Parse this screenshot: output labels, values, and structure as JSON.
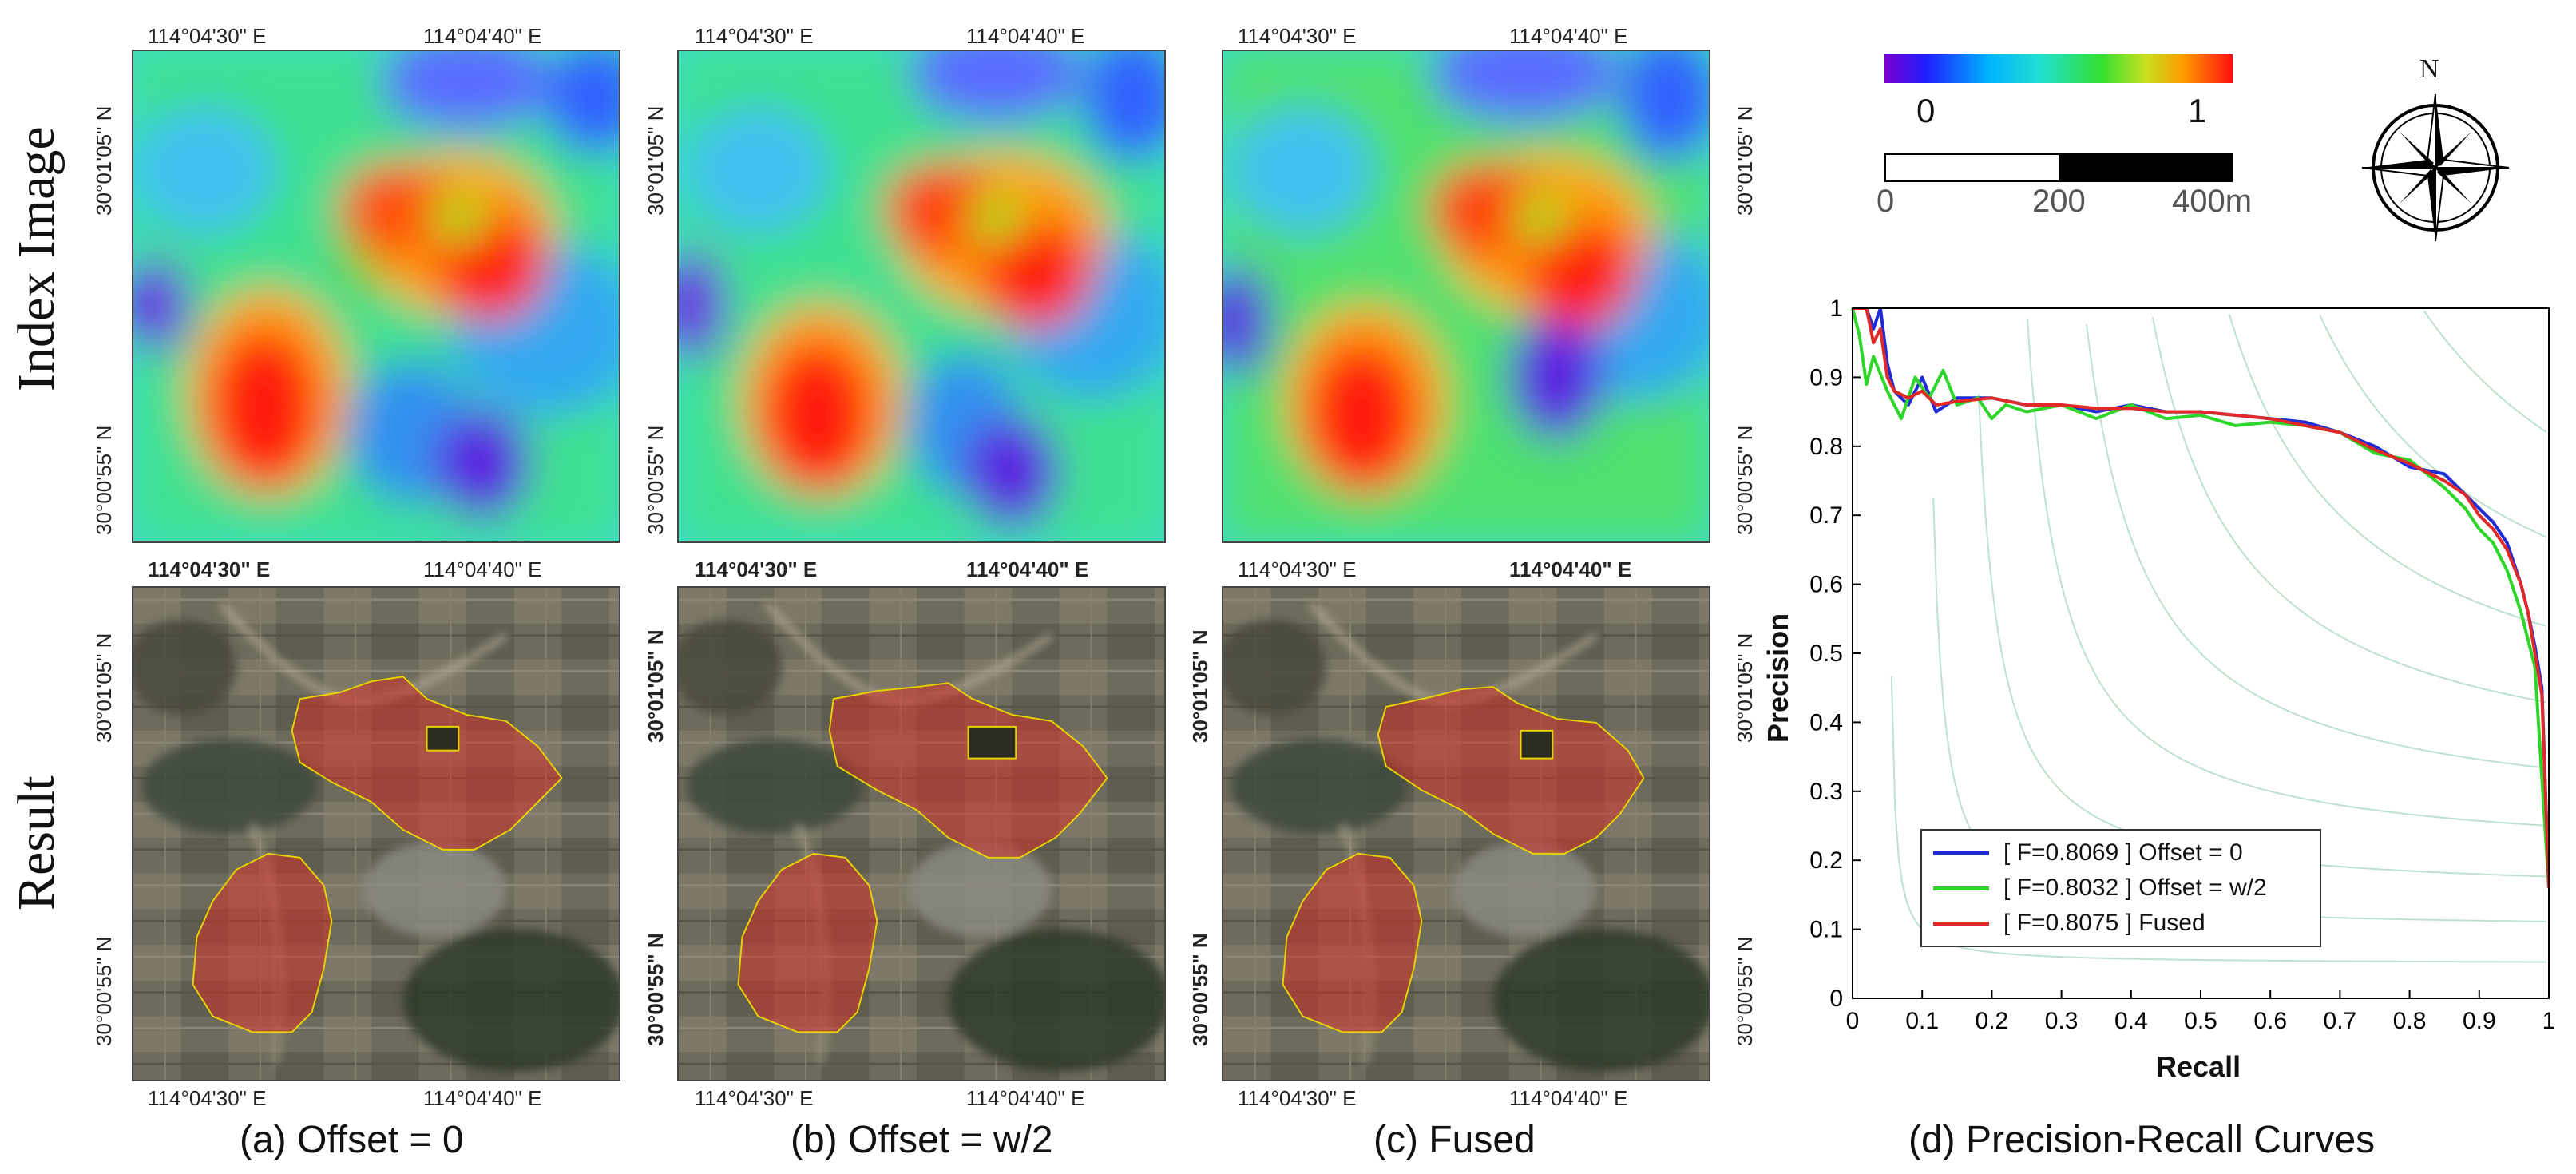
{
  "row_labels": {
    "index": "Index Image",
    "result": "Result"
  },
  "coords": {
    "lon1": "114°04'30\" E",
    "lon2": "114°04'40\" E",
    "lat1": "30°01'05\" N",
    "lat2": "30°00'55\" N"
  },
  "captions": {
    "a": "(a) Offset = 0",
    "b": "(b) Offset = w/2",
    "c": "(c) Fused",
    "d": "(d) Precision-Recall Curves"
  },
  "colorbar": {
    "min_label": "0",
    "max_label": "1"
  },
  "scalebar": {
    "l0": "0",
    "l1": "200",
    "l2": "400m"
  },
  "compass": {
    "north_label": "N"
  },
  "chart_data": {
    "type": "line",
    "xlabel": "Recall",
    "ylabel": "Precision",
    "xlim": [
      0,
      1
    ],
    "ylim": [
      0,
      1
    ],
    "x_ticks": [
      "0",
      "0.1",
      "0.2",
      "0.3",
      "0.4",
      "0.5",
      "0.6",
      "0.7",
      "0.8",
      "0.9",
      "1"
    ],
    "y_ticks": [
      "0",
      "0.1",
      "0.2",
      "0.3",
      "0.4",
      "0.5",
      "0.6",
      "0.7",
      "0.8",
      "0.9",
      "1"
    ],
    "grid": "iso-F curves",
    "legend_position": "bottom-left",
    "series": [
      {
        "name": "[ F=0.8069 ] Offset = 0",
        "color": "#1f2bd6",
        "x": [
          0.0,
          0.02,
          0.03,
          0.04,
          0.05,
          0.06,
          0.08,
          0.1,
          0.12,
          0.15,
          0.2,
          0.25,
          0.3,
          0.35,
          0.4,
          0.45,
          0.5,
          0.55,
          0.6,
          0.65,
          0.7,
          0.75,
          0.8,
          0.85,
          0.88,
          0.9,
          0.92,
          0.94,
          0.96,
          0.97,
          0.98,
          0.99,
          1.0
        ],
        "y": [
          1.0,
          1.0,
          0.97,
          1.0,
          0.92,
          0.88,
          0.86,
          0.9,
          0.85,
          0.87,
          0.87,
          0.86,
          0.86,
          0.85,
          0.86,
          0.85,
          0.85,
          0.845,
          0.84,
          0.835,
          0.82,
          0.8,
          0.77,
          0.76,
          0.73,
          0.71,
          0.69,
          0.66,
          0.6,
          0.56,
          0.51,
          0.45,
          0.16
        ]
      },
      {
        "name": "[ F=0.8032 ] Offset = w/2",
        "color": "#2ed629",
        "x": [
          0.0,
          0.01,
          0.02,
          0.03,
          0.05,
          0.07,
          0.09,
          0.11,
          0.13,
          0.15,
          0.18,
          0.2,
          0.22,
          0.25,
          0.3,
          0.35,
          0.4,
          0.45,
          0.5,
          0.55,
          0.6,
          0.65,
          0.7,
          0.75,
          0.8,
          0.85,
          0.88,
          0.9,
          0.92,
          0.94,
          0.96,
          0.98,
          1.0
        ],
        "y": [
          1.0,
          0.96,
          0.89,
          0.93,
          0.88,
          0.84,
          0.9,
          0.87,
          0.91,
          0.86,
          0.87,
          0.84,
          0.86,
          0.85,
          0.86,
          0.84,
          0.86,
          0.84,
          0.845,
          0.83,
          0.835,
          0.83,
          0.82,
          0.79,
          0.78,
          0.74,
          0.71,
          0.68,
          0.66,
          0.62,
          0.56,
          0.48,
          0.16
        ]
      },
      {
        "name": "[ F=0.8075 ] Fused",
        "color": "#e02a2a",
        "x": [
          0.0,
          0.02,
          0.03,
          0.04,
          0.05,
          0.06,
          0.08,
          0.1,
          0.12,
          0.15,
          0.2,
          0.25,
          0.3,
          0.35,
          0.4,
          0.45,
          0.5,
          0.55,
          0.6,
          0.65,
          0.7,
          0.75,
          0.8,
          0.85,
          0.88,
          0.9,
          0.92,
          0.94,
          0.96,
          0.97,
          0.98,
          0.99,
          1.0
        ],
        "y": [
          1.0,
          1.0,
          0.95,
          0.97,
          0.9,
          0.88,
          0.87,
          0.88,
          0.86,
          0.865,
          0.87,
          0.86,
          0.86,
          0.855,
          0.855,
          0.85,
          0.85,
          0.845,
          0.84,
          0.83,
          0.82,
          0.795,
          0.775,
          0.75,
          0.73,
          0.7,
          0.68,
          0.65,
          0.6,
          0.56,
          0.5,
          0.44,
          0.16
        ]
      }
    ]
  }
}
